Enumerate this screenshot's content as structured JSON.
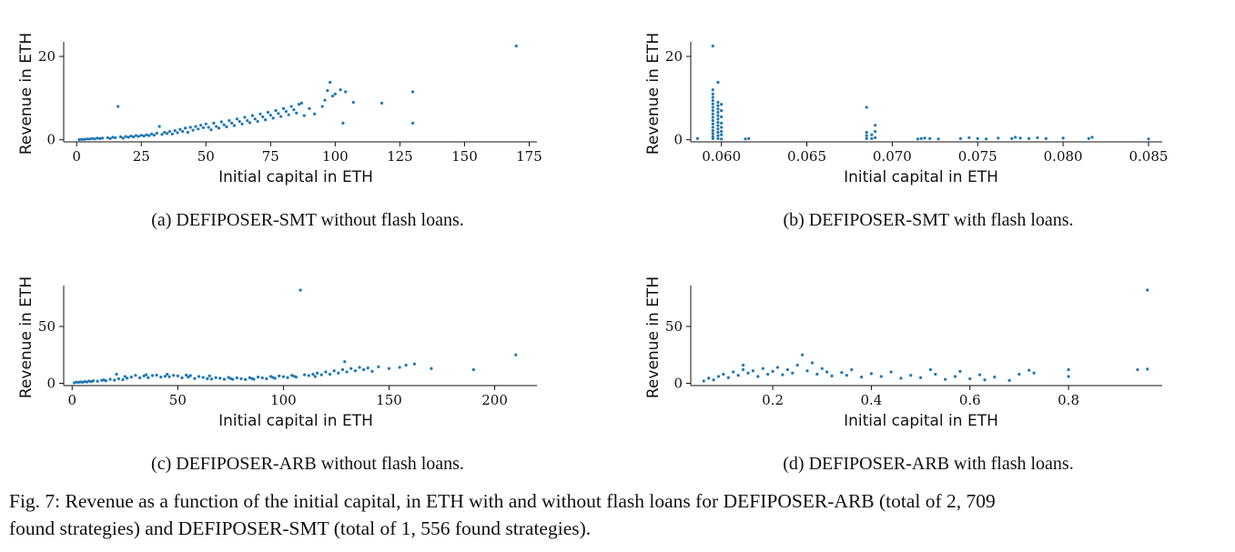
{
  "figure": {
    "caption_line1": "Fig. 7: Revenue as a function of the initial capital, in ETH with and without flash loans for DEFIPOSER-ARB (total of  2, 709",
    "caption_line2": "found strategies) and DEFIPOSER-SMT (total of  1, 556 found strategies)."
  },
  "chart_data": [
    {
      "id": "a",
      "type": "scatter",
      "caption": "(a) DEFIPOSER-SMT without flash loans.",
      "xlabel": "Initial capital in ETH",
      "ylabel": "Revenue in ETH",
      "xlim": [
        -5,
        178
      ],
      "ylim": [
        -0.5,
        23.5
      ],
      "xticks": [
        0,
        25,
        50,
        75,
        100,
        125,
        150,
        175
      ],
      "xtick_labels": [
        "0",
        "25",
        "50",
        "75",
        "100",
        "125",
        "150",
        "175"
      ],
      "yticks": [
        0,
        20
      ],
      "ytick_labels": [
        "0",
        "20"
      ],
      "grid": false,
      "color": "#1f77b4",
      "points": [
        [
          1,
          0.05
        ],
        [
          2,
          0.1
        ],
        [
          3,
          0.1
        ],
        [
          4,
          0.2
        ],
        [
          5,
          0.2
        ],
        [
          6,
          0.3
        ],
        [
          7,
          0.2
        ],
        [
          8,
          0.4
        ],
        [
          9,
          0.3
        ],
        [
          10,
          0.4
        ],
        [
          12,
          0.5
        ],
        [
          13,
          0.3
        ],
        [
          14,
          0.6
        ],
        [
          15,
          0.5
        ],
        [
          16,
          8.0
        ],
        [
          17,
          0.7
        ],
        [
          18,
          0.4
        ],
        [
          19,
          0.8
        ],
        [
          20,
          0.6
        ],
        [
          21,
          0.9
        ],
        [
          22,
          0.7
        ],
        [
          23,
          1.0
        ],
        [
          24,
          0.8
        ],
        [
          25,
          1.1
        ],
        [
          26,
          0.9
        ],
        [
          27,
          1.2
        ],
        [
          28,
          1.0
        ],
        [
          29,
          1.4
        ],
        [
          30,
          1.1
        ],
        [
          31,
          1.6
        ],
        [
          32,
          3.2
        ],
        [
          33,
          1.3
        ],
        [
          34,
          1.8
        ],
        [
          35,
          1.5
        ],
        [
          36,
          2.0
        ],
        [
          37,
          1.4
        ],
        [
          38,
          2.2
        ],
        [
          39,
          1.7
        ],
        [
          40,
          2.5
        ],
        [
          41,
          2.0
        ],
        [
          42,
          2.8
        ],
        [
          43,
          1.8
        ],
        [
          44,
          3.0
        ],
        [
          45,
          2.3
        ],
        [
          46,
          3.2
        ],
        [
          47,
          2.6
        ],
        [
          48,
          3.5
        ],
        [
          49,
          2.9
        ],
        [
          50,
          3.8
        ],
        [
          51,
          3.0
        ],
        [
          52,
          2.4
        ],
        [
          53,
          4.0
        ],
        [
          54,
          3.2
        ],
        [
          55,
          2.8
        ],
        [
          56,
          4.3
        ],
        [
          57,
          3.6
        ],
        [
          58,
          3.1
        ],
        [
          59,
          4.6
        ],
        [
          60,
          4.0
        ],
        [
          61,
          3.4
        ],
        [
          62,
          5.0
        ],
        [
          63,
          4.4
        ],
        [
          64,
          3.8
        ],
        [
          65,
          5.4
        ],
        [
          66,
          4.6
        ],
        [
          67,
          4.1
        ],
        [
          68,
          5.8
        ],
        [
          69,
          5.0
        ],
        [
          70,
          4.4
        ],
        [
          71,
          6.2
        ],
        [
          72,
          5.5
        ],
        [
          73,
          4.8
        ],
        [
          74,
          6.6
        ],
        [
          75,
          5.9
        ],
        [
          76,
          5.2
        ],
        [
          77,
          7.0
        ],
        [
          78,
          6.3
        ],
        [
          79,
          5.6
        ],
        [
          80,
          7.5
        ],
        [
          81,
          6.8
        ],
        [
          82,
          6.0
        ],
        [
          83,
          8.0
        ],
        [
          84,
          7.2
        ],
        [
          85,
          6.4
        ],
        [
          86,
          8.5
        ],
        [
          87,
          8.8
        ],
        [
          88,
          5.8
        ],
        [
          90,
          7.5
        ],
        [
          92,
          6.2
        ],
        [
          95,
          8.0
        ],
        [
          96,
          9.5
        ],
        [
          97,
          11.8
        ],
        [
          98,
          13.8
        ],
        [
          99,
          10.5
        ],
        [
          100,
          11.0
        ],
        [
          102,
          12.0
        ],
        [
          103,
          4.0
        ],
        [
          104,
          11.5
        ],
        [
          107,
          9.0
        ],
        [
          118,
          8.8
        ],
        [
          130,
          11.5
        ],
        [
          130,
          4.0
        ],
        [
          170,
          22.5
        ]
      ]
    },
    {
      "id": "b",
      "type": "scatter",
      "caption": "(b) DEFIPOSER-SMT with flash loans.",
      "xlabel": "Initial capital in ETH",
      "ylabel": "Revenue in ETH",
      "xlim": [
        0.0581,
        0.0858
      ],
      "ylim": [
        -0.5,
        23.5
      ],
      "xticks": [
        0.06,
        0.065,
        0.07,
        0.075,
        0.08,
        0.085
      ],
      "xtick_labels": [
        "0.060",
        "0.065",
        "0.070",
        "0.075",
        "0.080",
        "0.085"
      ],
      "yticks": [
        0,
        20
      ],
      "ytick_labels": [
        "0",
        "20"
      ],
      "grid": false,
      "color": "#1f77b4",
      "points": [
        [
          0.0586,
          0.3
        ],
        [
          0.0595,
          0.3
        ],
        [
          0.0595,
          0.8
        ],
        [
          0.0595,
          1.5
        ],
        [
          0.0595,
          2.2
        ],
        [
          0.0595,
          3.0
        ],
        [
          0.0595,
          3.8
        ],
        [
          0.0595,
          4.6
        ],
        [
          0.0595,
          5.4
        ],
        [
          0.0595,
          6.2
        ],
        [
          0.0595,
          7.0
        ],
        [
          0.0595,
          7.8
        ],
        [
          0.0595,
          8.6
        ],
        [
          0.0595,
          9.4
        ],
        [
          0.0595,
          10.2
        ],
        [
          0.0595,
          11.0
        ],
        [
          0.0595,
          12.0
        ],
        [
          0.0595,
          22.5
        ],
        [
          0.0598,
          0.3
        ],
        [
          0.0598,
          1.0
        ],
        [
          0.0598,
          1.8
        ],
        [
          0.0598,
          2.6
        ],
        [
          0.0598,
          3.4
        ],
        [
          0.0598,
          4.2
        ],
        [
          0.0598,
          5.0
        ],
        [
          0.0598,
          5.8
        ],
        [
          0.0598,
          6.6
        ],
        [
          0.0598,
          7.4
        ],
        [
          0.0598,
          8.2
        ],
        [
          0.0598,
          9.0
        ],
        [
          0.0598,
          13.8
        ],
        [
          0.06,
          0.2
        ],
        [
          0.06,
          1.2
        ],
        [
          0.06,
          2.0
        ],
        [
          0.06,
          3.0
        ],
        [
          0.06,
          4.0
        ],
        [
          0.06,
          5.5
        ],
        [
          0.06,
          7.0
        ],
        [
          0.06,
          8.5
        ],
        [
          0.0614,
          0.2
        ],
        [
          0.0616,
          0.3
        ],
        [
          0.0685,
          0.3
        ],
        [
          0.0685,
          1.0
        ],
        [
          0.0685,
          1.8
        ],
        [
          0.0685,
          7.8
        ],
        [
          0.0688,
          0.3
        ],
        [
          0.0688,
          1.2
        ],
        [
          0.069,
          0.5
        ],
        [
          0.069,
          2.0
        ],
        [
          0.069,
          3.5
        ],
        [
          0.0715,
          0.2
        ],
        [
          0.0717,
          0.3
        ],
        [
          0.0719,
          0.4
        ],
        [
          0.0722,
          0.3
        ],
        [
          0.0727,
          0.2
        ],
        [
          0.074,
          0.3
        ],
        [
          0.0745,
          0.5
        ],
        [
          0.075,
          0.3
        ],
        [
          0.0755,
          0.2
        ],
        [
          0.0762,
          0.4
        ],
        [
          0.077,
          0.3
        ],
        [
          0.0772,
          0.6
        ],
        [
          0.0775,
          0.4
        ],
        [
          0.078,
          0.3
        ],
        [
          0.0785,
          0.5
        ],
        [
          0.079,
          0.3
        ],
        [
          0.08,
          0.4
        ],
        [
          0.0815,
          0.3
        ],
        [
          0.0817,
          0.6
        ],
        [
          0.085,
          0.2
        ]
      ]
    },
    {
      "id": "c",
      "type": "scatter",
      "caption": "(c) DEFIPOSER-ARB without flash loans.",
      "xlabel": "Initial capital in ETH",
      "ylabel": "Revenue in ETH",
      "xlim": [
        -4,
        220
      ],
      "ylim": [
        -2,
        86
      ],
      "xticks": [
        0,
        50,
        100,
        150,
        200
      ],
      "xtick_labels": [
        "0",
        "50",
        "100",
        "150",
        "200"
      ],
      "yticks": [
        0,
        50
      ],
      "ytick_labels": [
        "0",
        "50"
      ],
      "grid": false,
      "color": "#1f77b4",
      "points": [
        [
          1,
          0.5
        ],
        [
          2,
          1.0
        ],
        [
          3,
          0.8
        ],
        [
          4,
          1.2
        ],
        [
          5,
          0.9
        ],
        [
          6,
          1.5
        ],
        [
          7,
          1.1
        ],
        [
          8,
          2.0
        ],
        [
          9,
          1.4
        ],
        [
          10,
          2.2
        ],
        [
          12,
          1.8
        ],
        [
          14,
          2.6
        ],
        [
          15,
          3.0
        ],
        [
          16,
          2.2
        ],
        [
          18,
          3.5
        ],
        [
          20,
          2.8
        ],
        [
          21,
          8.0
        ],
        [
          22,
          4.0
        ],
        [
          24,
          3.2
        ],
        [
          25,
          6.0
        ],
        [
          26,
          4.5
        ],
        [
          28,
          5.5
        ],
        [
          30,
          7.0
        ],
        [
          32,
          4.8
        ],
        [
          34,
          6.5
        ],
        [
          35,
          7.5
        ],
        [
          36,
          5.0
        ],
        [
          38,
          6.8
        ],
        [
          40,
          7.2
        ],
        [
          42,
          5.5
        ],
        [
          44,
          6.2
        ],
        [
          45,
          8.0
        ],
        [
          46,
          5.8
        ],
        [
          48,
          7.0
        ],
        [
          50,
          6.5
        ],
        [
          52,
          4.8
        ],
        [
          54,
          7.2
        ],
        [
          55,
          5.5
        ],
        [
          56,
          6.8
        ],
        [
          58,
          4.2
        ],
        [
          60,
          6.0
        ],
        [
          62,
          5.2
        ],
        [
          64,
          4.0
        ],
        [
          65,
          6.5
        ],
        [
          66,
          3.8
        ],
        [
          68,
          5.0
        ],
        [
          70,
          4.5
        ],
        [
          72,
          3.6
        ],
        [
          74,
          5.2
        ],
        [
          75,
          4.2
        ],
        [
          76,
          3.5
        ],
        [
          78,
          4.8
        ],
        [
          80,
          4.0
        ],
        [
          82,
          3.4
        ],
        [
          84,
          5.0
        ],
        [
          85,
          4.2
        ],
        [
          86,
          3.6
        ],
        [
          88,
          5.5
        ],
        [
          90,
          4.8
        ],
        [
          92,
          4.0
        ],
        [
          94,
          6.0
        ],
        [
          95,
          5.2
        ],
        [
          96,
          4.4
        ],
        [
          98,
          6.5
        ],
        [
          100,
          5.8
        ],
        [
          102,
          5.0
        ],
        [
          104,
          7.0
        ],
        [
          105,
          6.2
        ],
        [
          106,
          5.5
        ],
        [
          108,
          82.0
        ],
        [
          110,
          7.5
        ],
        [
          112,
          6.8
        ],
        [
          114,
          8.0
        ],
        [
          115,
          6.0
        ],
        [
          116,
          9.0
        ],
        [
          118,
          7.5
        ],
        [
          120,
          10.0
        ],
        [
          122,
          8.0
        ],
        [
          124,
          11.0
        ],
        [
          126,
          9.0
        ],
        [
          128,
          12.0
        ],
        [
          129,
          19.0
        ],
        [
          130,
          10.0
        ],
        [
          132,
          13.0
        ],
        [
          134,
          11.0
        ],
        [
          136,
          14.0
        ],
        [
          138,
          12.0
        ],
        [
          140,
          13.5
        ],
        [
          142,
          10.5
        ],
        [
          145,
          14.5
        ],
        [
          150,
          13.0
        ],
        [
          155,
          14.0
        ],
        [
          158,
          16.0
        ],
        [
          162,
          17.0
        ],
        [
          170,
          13.0
        ],
        [
          190,
          12.0
        ],
        [
          210,
          25.0
        ]
      ]
    },
    {
      "id": "d",
      "type": "scatter",
      "caption": "(d) DEFIPOSER-ARB with flash loans.",
      "xlabel": "Initial capital in ETH",
      "ylabel": "Revenue in ETH",
      "xlim": [
        0.03,
        0.99
      ],
      "ylim": [
        -2,
        86
      ],
      "xticks": [
        0.2,
        0.4,
        0.6,
        0.8
      ],
      "xtick_labels": [
        "0.2",
        "0.4",
        "0.6",
        "0.8"
      ],
      "yticks": [
        0,
        50
      ],
      "ytick_labels": [
        "0",
        "50"
      ],
      "grid": false,
      "color": "#1f77b4",
      "points": [
        [
          0.06,
          2.0
        ],
        [
          0.07,
          4.5
        ],
        [
          0.08,
          3.0
        ],
        [
          0.09,
          6.0
        ],
        [
          0.1,
          8.0
        ],
        [
          0.11,
          5.0
        ],
        [
          0.12,
          10.0
        ],
        [
          0.13,
          7.0
        ],
        [
          0.14,
          12.0
        ],
        [
          0.14,
          16.0
        ],
        [
          0.15,
          9.0
        ],
        [
          0.16,
          11.0
        ],
        [
          0.17,
          6.0
        ],
        [
          0.18,
          13.0
        ],
        [
          0.19,
          8.0
        ],
        [
          0.2,
          10.5
        ],
        [
          0.21,
          14.0
        ],
        [
          0.22,
          7.5
        ],
        [
          0.23,
          12.0
        ],
        [
          0.24,
          9.0
        ],
        [
          0.25,
          16.0
        ],
        [
          0.26,
          25.0
        ],
        [
          0.27,
          11.0
        ],
        [
          0.28,
          18.0
        ],
        [
          0.29,
          8.0
        ],
        [
          0.3,
          13.0
        ],
        [
          0.31,
          10.0
        ],
        [
          0.32,
          6.5
        ],
        [
          0.34,
          9.5
        ],
        [
          0.35,
          7.0
        ],
        [
          0.36,
          12.0
        ],
        [
          0.38,
          5.5
        ],
        [
          0.4,
          8.5
        ],
        [
          0.42,
          6.0
        ],
        [
          0.44,
          10.0
        ],
        [
          0.46,
          4.5
        ],
        [
          0.48,
          7.0
        ],
        [
          0.5,
          5.0
        ],
        [
          0.52,
          12.0
        ],
        [
          0.53,
          8.0
        ],
        [
          0.55,
          3.5
        ],
        [
          0.57,
          6.0
        ],
        [
          0.58,
          10.5
        ],
        [
          0.6,
          4.0
        ],
        [
          0.62,
          7.5
        ],
        [
          0.63,
          3.0
        ],
        [
          0.65,
          5.5
        ],
        [
          0.68,
          2.5
        ],
        [
          0.7,
          8.0
        ],
        [
          0.72,
          11.5
        ],
        [
          0.73,
          9.0
        ],
        [
          0.8,
          6.0
        ],
        [
          0.8,
          12.0
        ],
        [
          0.94,
          12.0
        ],
        [
          0.96,
          82.0
        ],
        [
          0.96,
          12.5
        ]
      ]
    }
  ]
}
